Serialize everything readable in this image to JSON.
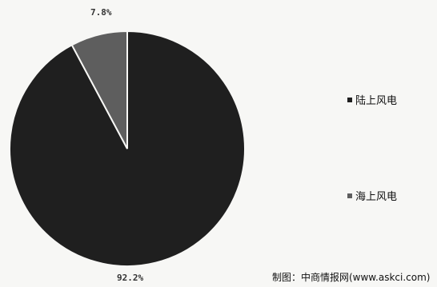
{
  "chart_data": {
    "type": "pie",
    "slices": [
      {
        "label": "陆上风电",
        "value": 92.2,
        "value_label": "92.2%",
        "color": "#1f1f1f"
      },
      {
        "label": "海上风电",
        "value": 7.8,
        "value_label": "7.8%",
        "color": "#5e5e5e"
      }
    ],
    "legend_position": "right",
    "start_angle": "12 o'clock, counter-clockwise for smaller slice"
  },
  "source": "制图：中商情报网(www.askci.com)"
}
